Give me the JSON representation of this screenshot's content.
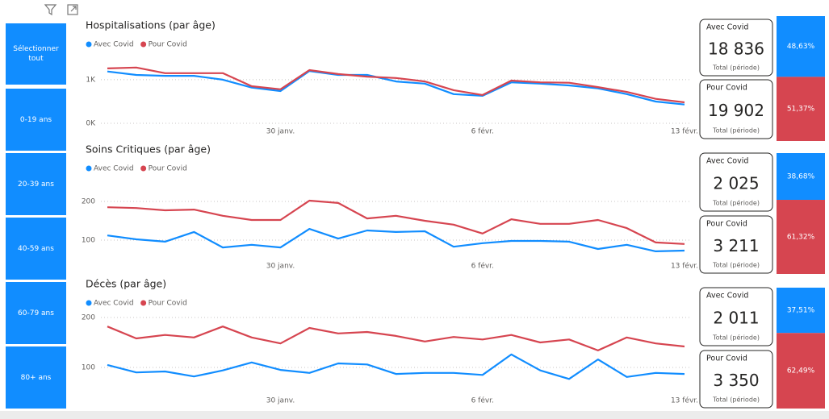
{
  "slicer": [
    "Sélectionner tout",
    "0-19 ans",
    "20-39 ans",
    "40-59 ans",
    "60-79 ans",
    "80+ ans"
  ],
  "chart_data": [
    {
      "type": "line",
      "title": "Hospitalisations (par âge)",
      "categories": [
        null,
        null,
        null,
        null,
        null,
        null,
        "30 janv.",
        null,
        null,
        null,
        null,
        null,
        null,
        "6 févr.",
        null,
        null,
        null,
        null,
        null,
        null,
        "13 févr."
      ],
      "series": [
        {
          "name": "Avec Covid",
          "color": "#118dff",
          "values": [
            1190,
            1110,
            1090,
            1090,
            1000,
            820,
            740,
            1200,
            1110,
            1110,
            960,
            910,
            670,
            630,
            940,
            910,
            870,
            800,
            670,
            500,
            430
          ]
        },
        {
          "name": "Pour Covid",
          "color": "#d64550",
          "values": [
            1260,
            1280,
            1150,
            1150,
            1150,
            850,
            780,
            1220,
            1130,
            1070,
            1040,
            960,
            760,
            650,
            980,
            940,
            930,
            830,
            720,
            560,
            480
          ]
        }
      ],
      "ylim": [
        0,
        1350
      ],
      "yticks": [
        {
          "value": 0,
          "label": "0K"
        },
        {
          "value": 1000,
          "label": "1K"
        }
      ],
      "grid": true
    },
    {
      "type": "line",
      "title": "Soins Critiques (par âge)",
      "categories": [
        null,
        null,
        null,
        null,
        null,
        null,
        "30 janv.",
        null,
        null,
        null,
        null,
        null,
        null,
        "6 févr.",
        null,
        null,
        null,
        null,
        null,
        null,
        "13 févr."
      ],
      "series": [
        {
          "name": "Avec Covid",
          "color": "#118dff",
          "values": [
            112,
            102,
            96,
            121,
            81,
            88,
            81,
            129,
            104,
            125,
            121,
            123,
            83,
            92,
            98,
            98,
            96,
            77,
            88,
            71,
            73
          ]
        },
        {
          "name": "Pour Covid",
          "color": "#d64550",
          "values": [
            185,
            183,
            177,
            179,
            163,
            152,
            152,
            202,
            196,
            156,
            163,
            150,
            140,
            117,
            154,
            142,
            142,
            152,
            131,
            94,
            90
          ]
        }
      ],
      "ylim": [
        50,
        230
      ],
      "yticks": [
        100,
        200
      ],
      "grid": true
    },
    {
      "type": "line",
      "title": "Décès (par âge)",
      "categories": [
        null,
        null,
        null,
        null,
        null,
        null,
        "30 janv.",
        null,
        null,
        null,
        null,
        null,
        null,
        "6 févr.",
        null,
        null,
        null,
        null,
        null,
        null,
        "13 févr."
      ],
      "series": [
        {
          "name": "Avec Covid",
          "color": "#118dff",
          "values": [
            105,
            90,
            92,
            82,
            94,
            110,
            95,
            89,
            108,
            106,
            87,
            89,
            89,
            85,
            126,
            94,
            77,
            116,
            81,
            89,
            87
          ]
        },
        {
          "name": "Pour Covid",
          "color": "#d64550",
          "values": [
            182,
            158,
            165,
            160,
            182,
            160,
            148,
            179,
            168,
            171,
            163,
            152,
            161,
            156,
            165,
            150,
            156,
            134,
            160,
            148,
            142
          ]
        }
      ],
      "ylim": [
        50,
        215
      ],
      "yticks": [
        100,
        200
      ],
      "grid": true
    },
    {
      "type": "stacked_bar",
      "series": [
        {
          "color": "#118dff",
          "values": [
            48.63
          ],
          "value_labels": [
            "48,63%"
          ]
        },
        {
          "color": "#d64550",
          "values": [
            51.37
          ],
          "value_labels": [
            "51,37%"
          ]
        }
      ]
    },
    {
      "type": "stacked_bar",
      "series": [
        {
          "color": "#118dff",
          "values": [
            38.68
          ],
          "value_labels": [
            "38,68%"
          ]
        },
        {
          "color": "#d64550",
          "values": [
            61.32
          ],
          "value_labels": [
            "61,32%"
          ]
        }
      ]
    },
    {
      "type": "stacked_bar",
      "series": [
        {
          "color": "#118dff",
          "values": [
            37.51
          ],
          "value_labels": [
            "37,51%"
          ]
        },
        {
          "color": "#d64550",
          "values": [
            62.49
          ],
          "value_labels": [
            "62,49%"
          ]
        }
      ]
    }
  ],
  "cards": [
    [
      {
        "title": "Avec Covid",
        "value": "18 836",
        "caption": "Total (période)"
      },
      {
        "title": "Pour Covid",
        "value": "19 902",
        "caption": "Total (période)"
      }
    ],
    [
      {
        "title": "Avec Covid",
        "value": "2 025",
        "caption": "Total (période)"
      },
      {
        "title": "Pour Covid",
        "value": "3 211",
        "caption": "Total (période)"
      }
    ],
    [
      {
        "title": "Avec Covid",
        "value": "2 011",
        "caption": "Total (période)"
      },
      {
        "title": "Pour Covid",
        "value": "3 350",
        "caption": "Total (période)"
      }
    ]
  ]
}
